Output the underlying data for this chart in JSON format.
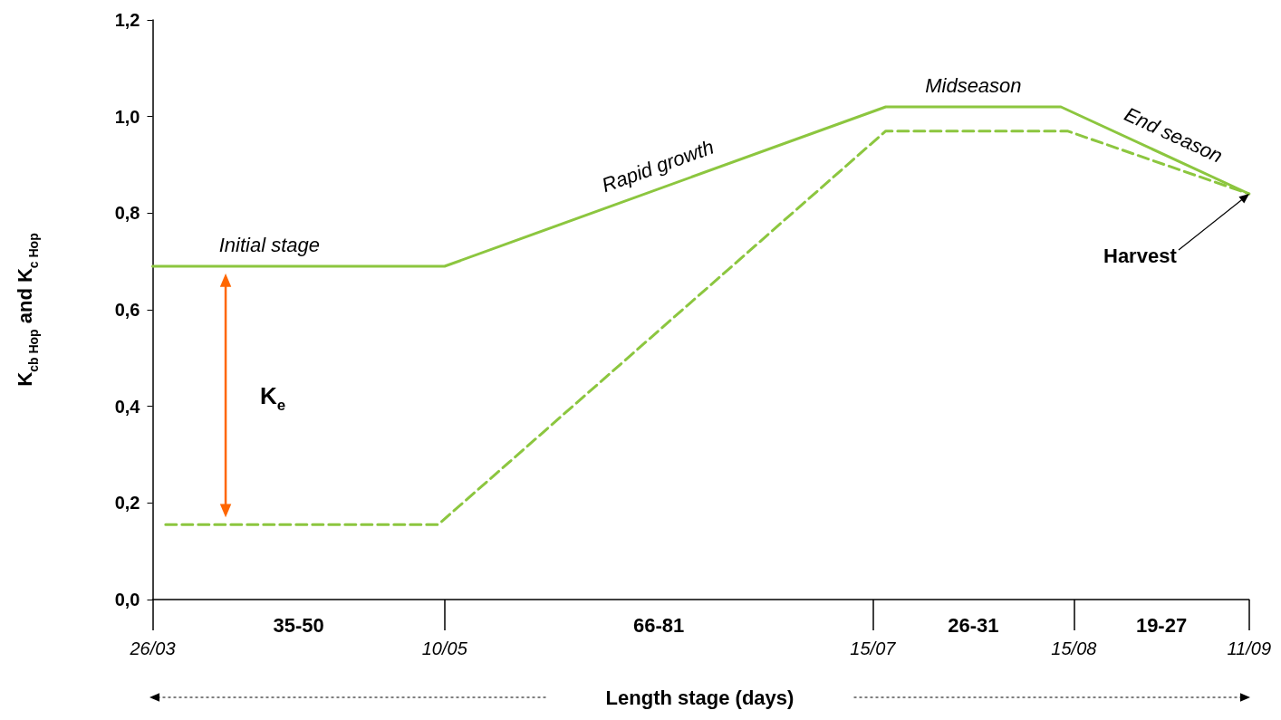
{
  "chart_data": {
    "type": "line",
    "xlabel": "Length stage (days)",
    "ylabel": "K$_{cb Hop}$ and K$_{c Hop}$",
    "xlim": [
      "--03-26",
      "--09-11"
    ],
    "xticks": [
      {
        "value": "--03-26",
        "label": "26/03"
      },
      {
        "value": "--05-10",
        "label": "10/05"
      },
      {
        "value": "--07-15",
        "label": "15/07"
      },
      {
        "value": "--08-15",
        "label": "15/08"
      },
      {
        "value": "--09-11",
        "label": "11/09"
      }
    ],
    "ylim": [
      0,
      1.2
    ],
    "yticks": [
      {
        "value": 0,
        "label": "0,0"
      },
      {
        "value": 0.2,
        "label": "0,2"
      },
      {
        "value": 0.4,
        "label": "0,4"
      },
      {
        "value": 0.6,
        "label": "0,6"
      },
      {
        "value": 0.8,
        "label": "0,8"
      },
      {
        "value": 1,
        "label": "1,0"
      },
      {
        "value": 1.2,
        "label": "1,2"
      }
    ],
    "series": [
      {
        "color": "#8cc63f",
        "line_style": "solid",
        "x": [
          "--03-26",
          "--05-10",
          "--07-17",
          "--08-13",
          "--09-11"
        ],
        "values": [
          0.69,
          0.69,
          1.02,
          1.02,
          0.84
        ]
      },
      {
        "color": "#8cc63f",
        "line_style": "dashed",
        "x": [
          "--03-28",
          "--05-09",
          "--07-17",
          "--08-14",
          "--09-11"
        ],
        "values": [
          0.155,
          0.155,
          0.97,
          0.97,
          0.84
        ]
      }
    ],
    "annotations": [
      "Initial stage",
      "Rapid growth",
      "Midseason",
      "End season",
      {
        "text": "Harvest",
        "x": "--09-11",
        "y": 0.84
      },
      "K$_{e}$",
      "35-50",
      "66-81",
      "26-31",
      "19-27"
    ],
    "marker": "none",
    "grid": false
  }
}
